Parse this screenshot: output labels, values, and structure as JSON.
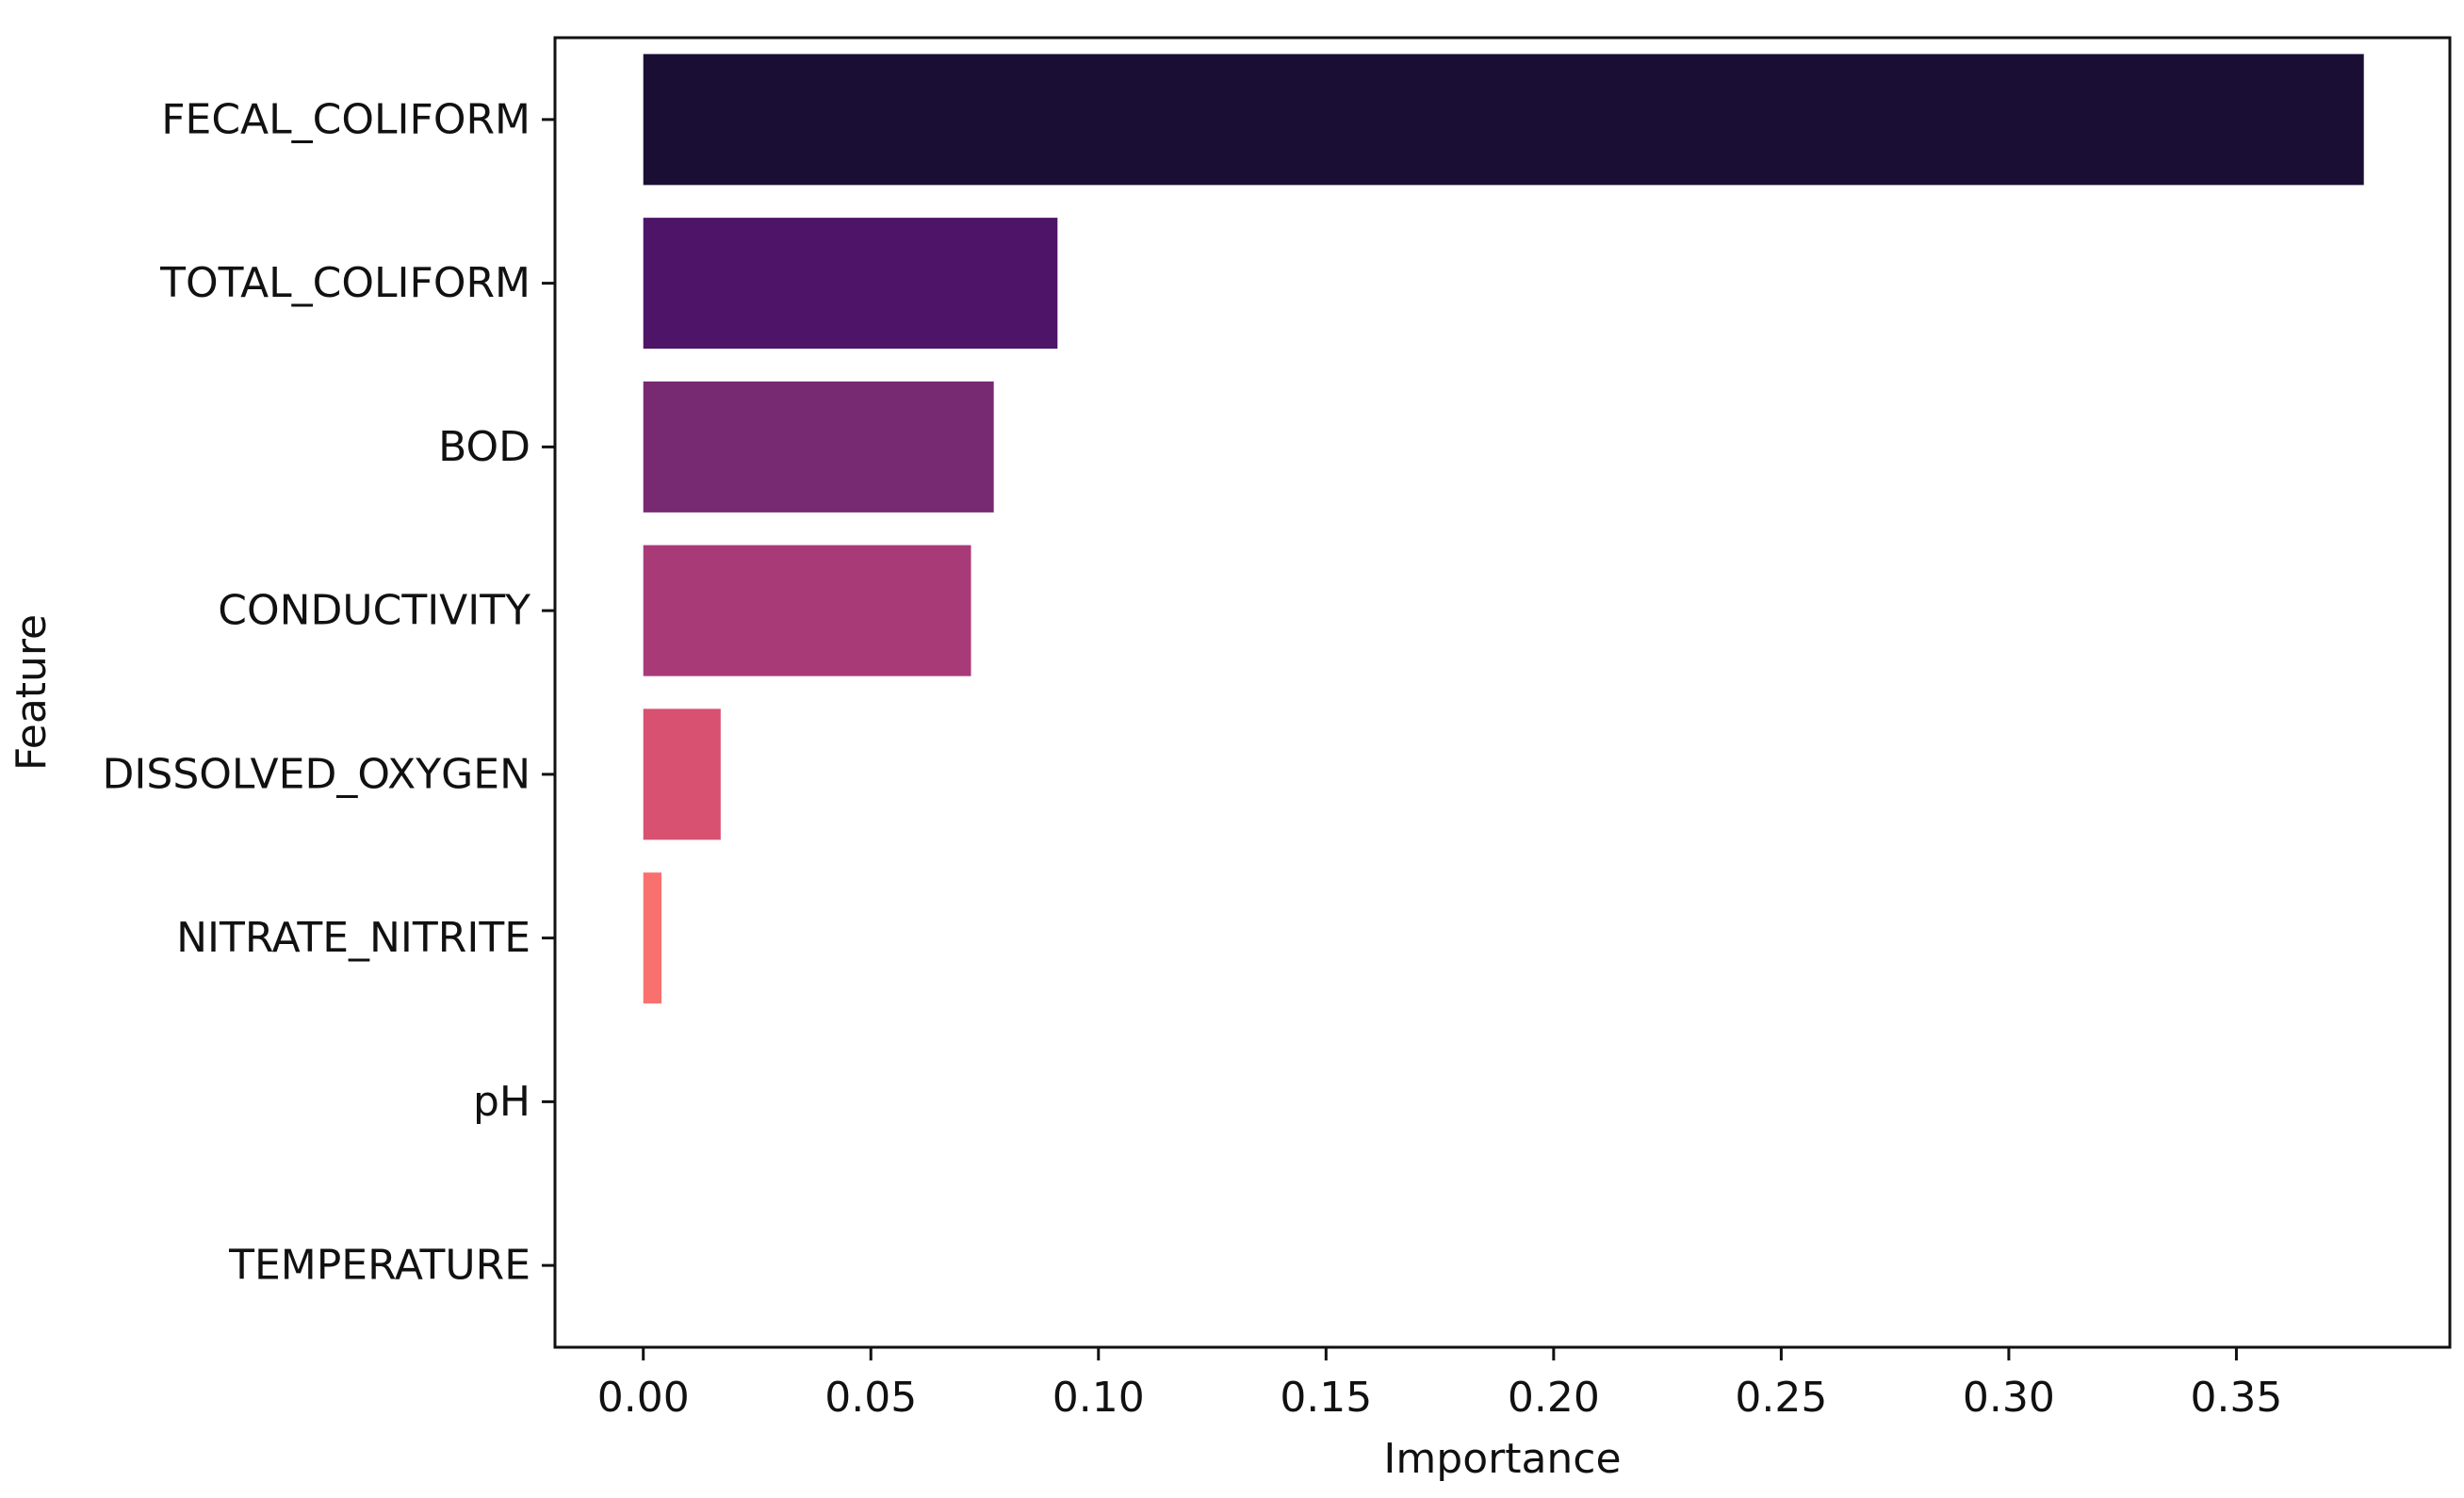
{
  "chart_data": {
    "type": "bar",
    "orientation": "horizontal",
    "title": "",
    "xlabel": "Importance",
    "ylabel": "Feature",
    "categories": [
      "FECAL_COLIFORM",
      "TOTAL_COLIFORM",
      "BOD",
      "CONDUCTIVITY",
      "DISSOLVED_OXYGEN",
      "NITRATE_NITRITE",
      "pH",
      "TEMPERATURE"
    ],
    "values": [
      0.378,
      0.091,
      0.077,
      0.072,
      0.017,
      0.004,
      0.0,
      0.0
    ],
    "colors": [
      "#1b0e35",
      "#4d1467",
      "#772a71",
      "#a83a78",
      "#d85170",
      "#f9716f",
      "#fba37f",
      "#fdd5a4"
    ],
    "xlim": [
      -0.0194,
      0.3969
    ],
    "xticks": [
      0.0,
      0.05,
      0.1,
      0.15,
      0.2,
      0.25,
      0.3,
      0.35
    ],
    "xtick_labels": [
      "0.00",
      "0.05",
      "0.10",
      "0.15",
      "0.20",
      "0.25",
      "0.30",
      "0.35"
    ],
    "grid": false,
    "legend": "none"
  }
}
